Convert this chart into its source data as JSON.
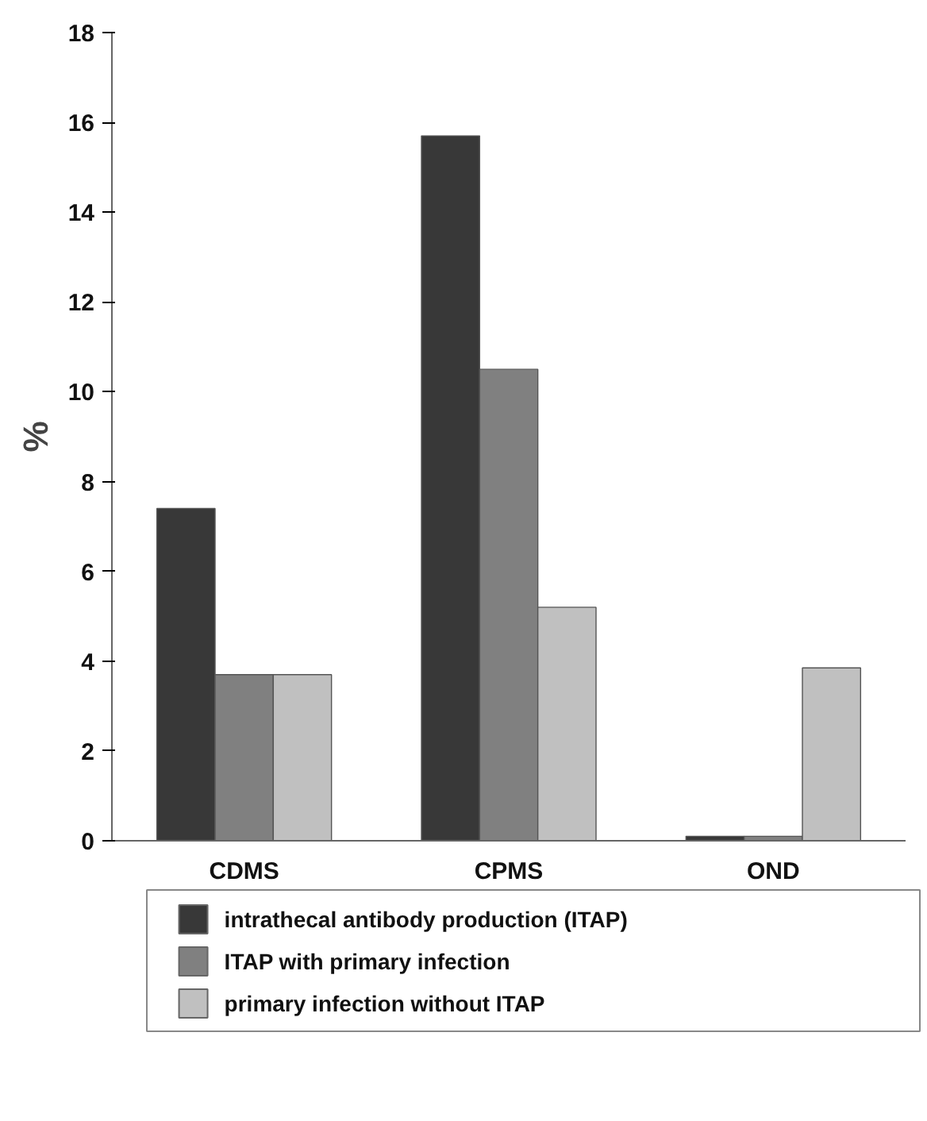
{
  "chart_data": {
    "type": "bar",
    "ylabel": "%",
    "categories": [
      "CDMS",
      "CPMS",
      "OND"
    ],
    "series": [
      {
        "name": "intrathecal antibody production (ITAP)",
        "color": "#383838",
        "values": [
          7.4,
          15.7,
          0.1
        ]
      },
      {
        "name": "ITAP with primary infection",
        "color": "#808080",
        "values": [
          3.7,
          10.5,
          0.1
        ]
      },
      {
        "name": "primary infection without ITAP",
        "color": "#c0c0c0",
        "values": [
          3.7,
          5.2,
          3.85
        ]
      }
    ],
    "ylim": [
      0,
      18
    ],
    "yticks": [
      0,
      2,
      4,
      6,
      8,
      10,
      12,
      14,
      16,
      18
    ],
    "grid": false,
    "legend": "bottom"
  }
}
